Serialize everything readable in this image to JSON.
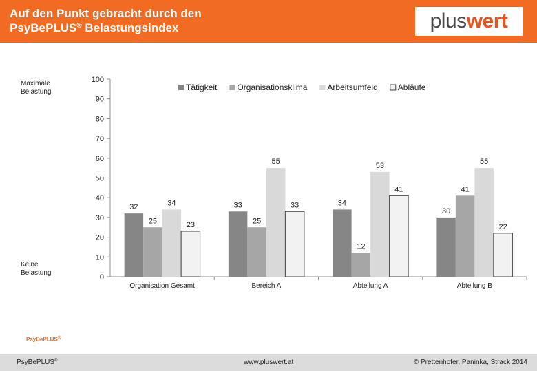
{
  "header": {
    "title_line1": "Auf den Punkt gebracht durch den",
    "title_line2": "PsyBePLUS",
    "title_reg": "®",
    "title_line2_rest": " Belastungsindex",
    "logo_part1": "plus",
    "logo_part2": "wert"
  },
  "side_labels": {
    "top_line1": "Maximale",
    "top_line2": "Belastung",
    "bottom_line1": "Keine",
    "bottom_line2": "Belastung"
  },
  "small_logo": "PsyBePLUS",
  "small_logo_reg": "®",
  "footer": {
    "left": "PsyBePLUS",
    "left_reg": "®",
    "center": "www.pluswert.at",
    "right": "© Prettenhofer, Paninka, Strack 2014"
  },
  "colors": {
    "header_bg": "#f26b22",
    "series": [
      "#868686",
      "#a6a6a6",
      "#d9d9d9",
      "#f2f2f2"
    ]
  },
  "chart_data": {
    "type": "bar",
    "categories": [
      "Organisation Gesamt",
      "Bereich A",
      "Abteilung A",
      "Abteilung B"
    ],
    "series": [
      {
        "name": "Tätigkeit",
        "values": [
          32,
          33,
          34,
          30
        ]
      },
      {
        "name": "Organisationsklima",
        "values": [
          25,
          25,
          12,
          41
        ]
      },
      {
        "name": "Arbeitsumfeld",
        "values": [
          34,
          55,
          53,
          55
        ]
      },
      {
        "name": "Abläufe",
        "values": [
          23,
          33,
          41,
          22
        ]
      }
    ],
    "ylim": [
      0,
      100
    ],
    "yticks": [
      0,
      10,
      20,
      30,
      40,
      50,
      60,
      70,
      80,
      90,
      100
    ],
    "legend": "top",
    "grid": false,
    "data_labels": true
  }
}
